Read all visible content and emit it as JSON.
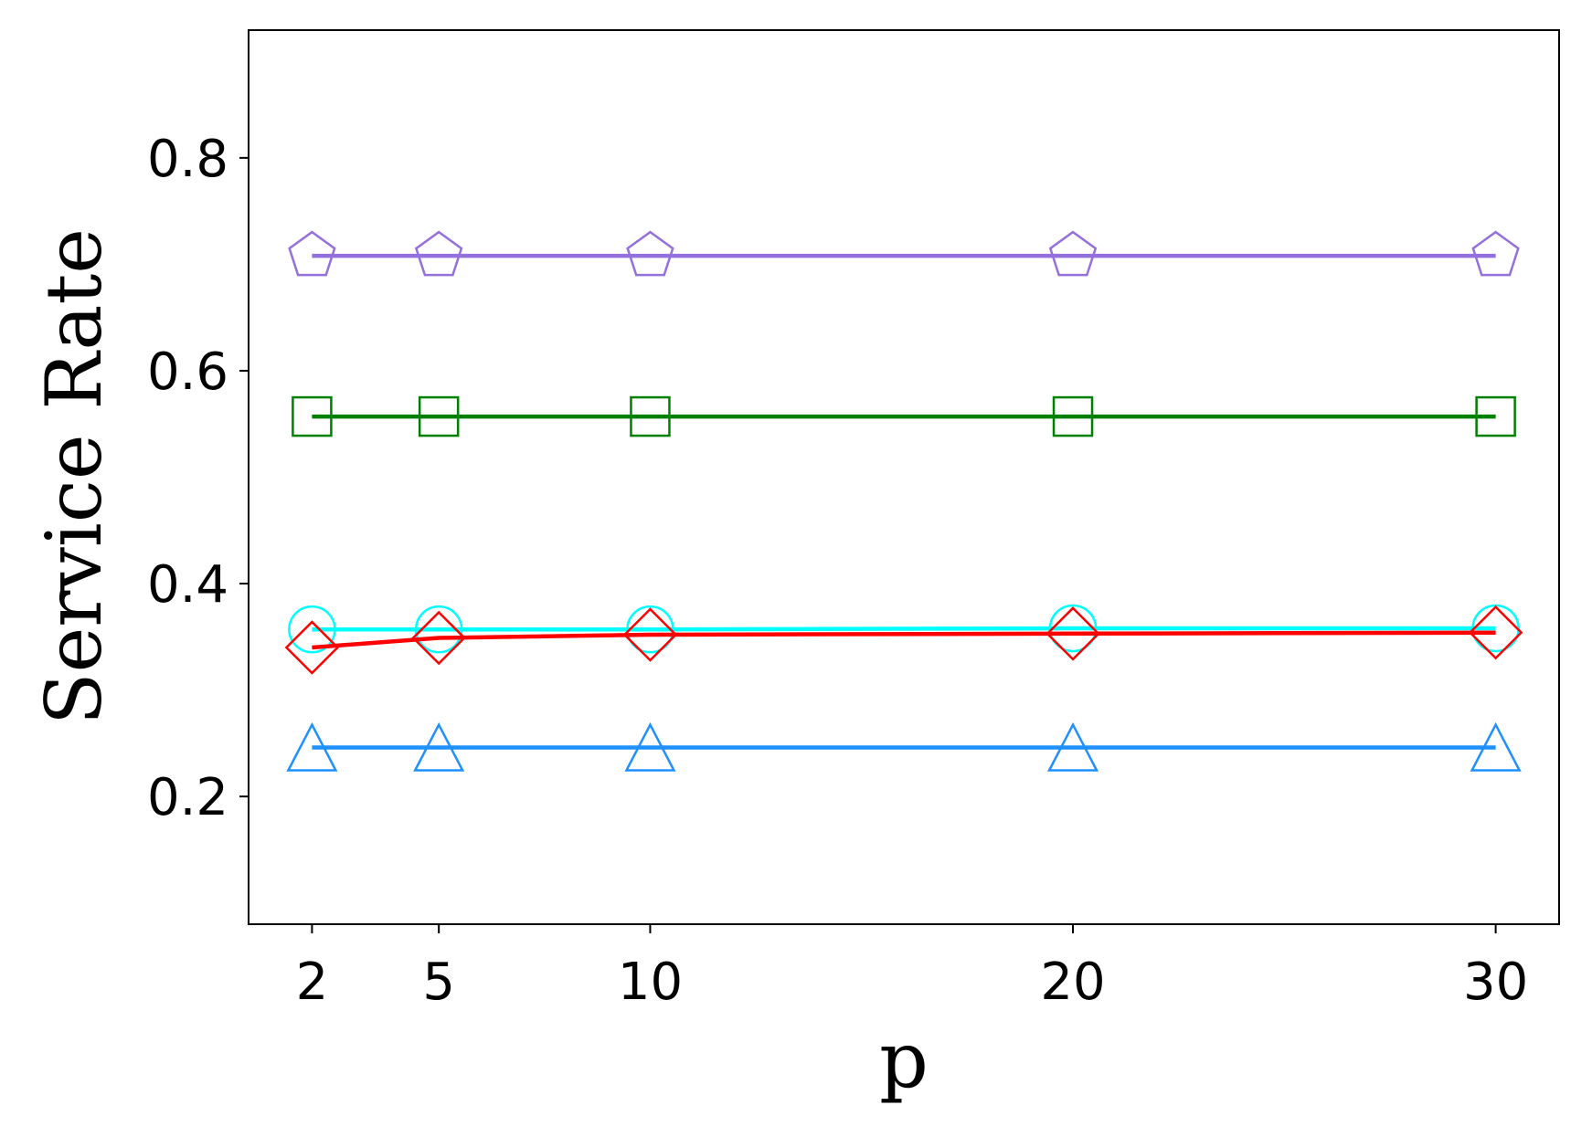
{
  "chart_data": {
    "type": "line",
    "xlabel": "p",
    "ylabel": "Service Rate",
    "x": [
      2,
      5,
      10,
      20,
      30
    ],
    "x_tick_labels": [
      "2",
      "5",
      "10",
      "20",
      "30"
    ],
    "y_ticks": [
      0.2,
      0.4,
      0.6,
      0.8
    ],
    "y_tick_labels": [
      "0.2",
      "0.4",
      "0.6",
      "0.8"
    ],
    "xlim": [
      0.5,
      31.5
    ],
    "ylim": [
      0.08,
      0.92
    ],
    "grid": false,
    "legend": "none",
    "series": [
      {
        "color": "#9370DB",
        "marker": "pentagon",
        "values": [
          0.708,
          0.708,
          0.708,
          0.708,
          0.708
        ]
      },
      {
        "color": "#008000",
        "marker": "square",
        "values": [
          0.557,
          0.557,
          0.557,
          0.557,
          0.557
        ]
      },
      {
        "color": "#00FFFF",
        "marker": "circle",
        "values": [
          0.357,
          0.357,
          0.357,
          0.358,
          0.358
        ]
      },
      {
        "color": "#FF0000",
        "marker": "diamond",
        "values": [
          0.34,
          0.349,
          0.352,
          0.353,
          0.354
        ]
      },
      {
        "color": "#1E90FF",
        "marker": "triangle",
        "values": [
          0.246,
          0.246,
          0.246,
          0.246,
          0.246
        ]
      }
    ]
  }
}
